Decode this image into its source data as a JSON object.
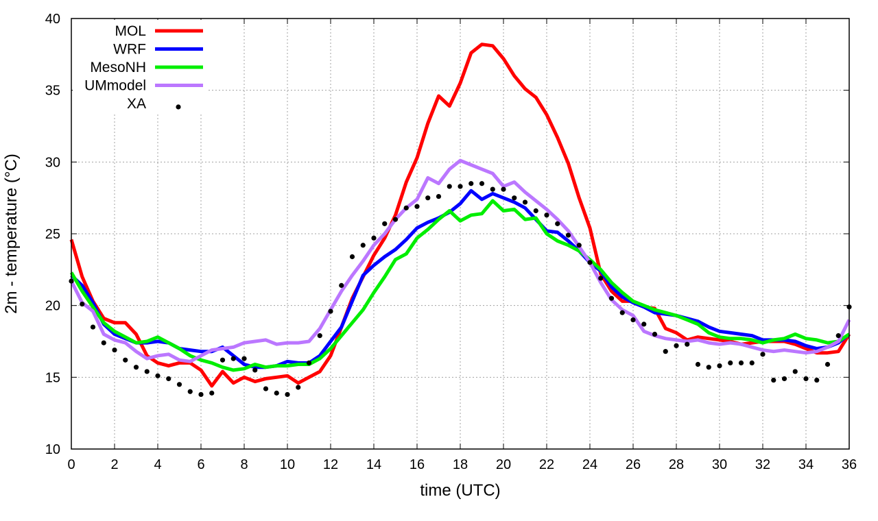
{
  "chart_data": {
    "type": "line",
    "title": "",
    "xlabel": "time (UTC)",
    "ylabel": "2m - temperature (°C)",
    "xlim": [
      0,
      36
    ],
    "ylim": [
      10,
      40
    ],
    "x_ticks": [
      0,
      2,
      4,
      6,
      8,
      10,
      12,
      14,
      16,
      18,
      20,
      22,
      24,
      26,
      28,
      30,
      32,
      34,
      36
    ],
    "y_ticks": [
      10,
      15,
      20,
      25,
      30,
      35,
      40
    ],
    "grid": true,
    "legend_position": "top-left",
    "x": [
      0,
      0.5,
      1,
      1.5,
      2,
      2.5,
      3,
      3.5,
      4,
      4.5,
      5,
      5.5,
      6,
      6.5,
      7,
      7.5,
      8,
      8.5,
      9,
      9.5,
      10,
      10.5,
      11,
      11.5,
      12,
      12.5,
      13,
      13.5,
      14,
      14.5,
      15,
      15.5,
      16,
      16.5,
      17,
      17.5,
      18,
      18.5,
      19,
      19.5,
      20,
      20.5,
      21,
      21.5,
      22,
      22.5,
      23,
      23.5,
      24,
      24.5,
      25,
      25.5,
      26,
      26.5,
      27,
      27.5,
      28,
      28.5,
      29,
      29.5,
      30,
      30.5,
      31,
      31.5,
      32,
      32.5,
      33,
      33.5,
      34,
      34.5,
      35,
      35.5,
      36
    ],
    "series": [
      {
        "name": "MOL",
        "color": "#ff0000",
        "style": "line",
        "values": [
          24.6,
          22.0,
          20.3,
          19.1,
          18.8,
          18.8,
          18.0,
          16.5,
          16.0,
          15.8,
          16.0,
          16.0,
          15.5,
          14.4,
          15.4,
          14.6,
          15.0,
          14.7,
          14.9,
          15.0,
          15.1,
          14.6,
          15.0,
          15.4,
          16.5,
          18.5,
          20.5,
          22.0,
          23.5,
          24.7,
          26.3,
          28.6,
          30.3,
          32.7,
          34.6,
          33.9,
          35.5,
          37.6,
          38.2,
          38.1,
          37.2,
          36.0,
          35.1,
          34.5,
          33.3,
          31.7,
          29.9,
          27.5,
          25.4,
          22.2,
          21.0,
          20.3,
          20.3,
          19.9,
          19.8,
          18.4,
          18.1,
          17.6,
          17.8,
          17.7,
          17.6,
          17.5,
          17.3,
          17.4,
          17.5,
          17.5,
          17.5,
          17.3,
          17.0,
          16.7,
          16.7,
          16.8,
          18.0
        ]
      },
      {
        "name": "WRF",
        "color": "#0000ff",
        "style": "line",
        "values": [
          22.1,
          21.4,
          20.2,
          18.7,
          18.0,
          17.7,
          17.4,
          17.4,
          17.5,
          17.4,
          17.0,
          16.9,
          16.8,
          16.8,
          17.1,
          16.5,
          15.9,
          15.7,
          15.7,
          15.8,
          16.1,
          16.0,
          16.0,
          16.5,
          17.5,
          18.5,
          20.3,
          22.1,
          22.8,
          23.4,
          23.9,
          24.6,
          25.4,
          25.8,
          26.1,
          26.5,
          27.1,
          28.0,
          27.4,
          27.8,
          27.5,
          27.2,
          26.8,
          26.0,
          25.2,
          25.1,
          24.5,
          23.8,
          23.0,
          22.4,
          21.3,
          20.6,
          20.2,
          19.9,
          19.5,
          19.4,
          19.3,
          19.1,
          18.9,
          18.5,
          18.2,
          18.1,
          18.0,
          17.9,
          17.6,
          17.6,
          17.6,
          17.5,
          17.2,
          17.0,
          17.1,
          17.4,
          18.0
        ]
      },
      {
        "name": "MesoNH",
        "color": "#00ee00",
        "style": "line",
        "values": [
          22.3,
          21.0,
          19.9,
          18.8,
          18.2,
          17.8,
          17.4,
          17.5,
          17.8,
          17.4,
          17.0,
          16.5,
          16.2,
          16.0,
          15.7,
          15.5,
          15.6,
          15.9,
          15.7,
          15.8,
          15.8,
          15.9,
          15.9,
          16.3,
          17.0,
          17.9,
          18.8,
          19.7,
          20.9,
          22.0,
          23.2,
          23.6,
          24.7,
          25.3,
          26.0,
          26.6,
          25.9,
          26.3,
          26.4,
          27.3,
          26.6,
          26.7,
          26.0,
          26.1,
          25.0,
          24.5,
          24.2,
          23.8,
          23.2,
          22.5,
          21.6,
          20.9,
          20.3,
          20.0,
          19.7,
          19.5,
          19.3,
          19.0,
          18.7,
          18.1,
          17.8,
          17.7,
          17.7,
          17.6,
          17.4,
          17.6,
          17.7,
          18.0,
          17.7,
          17.6,
          17.4,
          17.5,
          18.0
        ]
      },
      {
        "name": "UMmodel",
        "color": "#bb77ff",
        "style": "line",
        "values": [
          21.7,
          20.2,
          19.6,
          18.0,
          17.6,
          17.4,
          16.8,
          16.3,
          16.5,
          16.6,
          16.2,
          16.1,
          16.5,
          16.9,
          17.0,
          17.1,
          17.4,
          17.5,
          17.6,
          17.3,
          17.4,
          17.4,
          17.5,
          18.4,
          19.7,
          21.0,
          22.1,
          23.1,
          24.2,
          25.0,
          26.0,
          26.8,
          27.4,
          28.9,
          28.5,
          29.5,
          30.1,
          29.8,
          29.5,
          29.2,
          28.3,
          28.6,
          27.9,
          27.3,
          26.7,
          26.0,
          25.2,
          24.1,
          23.0,
          21.6,
          20.4,
          19.7,
          19.3,
          18.2,
          17.9,
          17.7,
          17.6,
          17.5,
          17.6,
          17.4,
          17.3,
          17.4,
          17.3,
          17.1,
          16.9,
          16.8,
          16.9,
          16.8,
          16.7,
          16.8,
          17.1,
          17.5,
          19.0
        ]
      },
      {
        "name": "XA",
        "color": "#000000",
        "style": "points",
        "values": [
          21.7,
          20.1,
          18.5,
          17.4,
          16.9,
          16.2,
          15.7,
          15.4,
          15.1,
          14.9,
          14.5,
          14.0,
          13.8,
          13.9,
          16.2,
          16.3,
          16.3,
          15.5,
          14.2,
          13.9,
          13.8,
          14.3,
          16.0,
          17.9,
          19.6,
          21.4,
          23.4,
          24.2,
          24.7,
          25.7,
          26.0,
          26.8,
          26.9,
          27.5,
          27.6,
          28.3,
          28.3,
          28.5,
          28.5,
          28.1,
          28.1,
          27.5,
          27.2,
          26.6,
          26.3,
          25.7,
          24.9,
          24.2,
          23.0,
          21.9,
          20.5,
          19.5,
          19.0,
          18.7,
          18.0,
          16.8,
          17.2,
          17.3,
          15.9,
          15.7,
          15.8,
          16.0,
          16.0,
          16.0,
          16.6,
          14.8,
          14.9,
          15.4,
          14.9,
          14.8,
          15.9,
          17.9,
          19.9
        ]
      }
    ]
  }
}
